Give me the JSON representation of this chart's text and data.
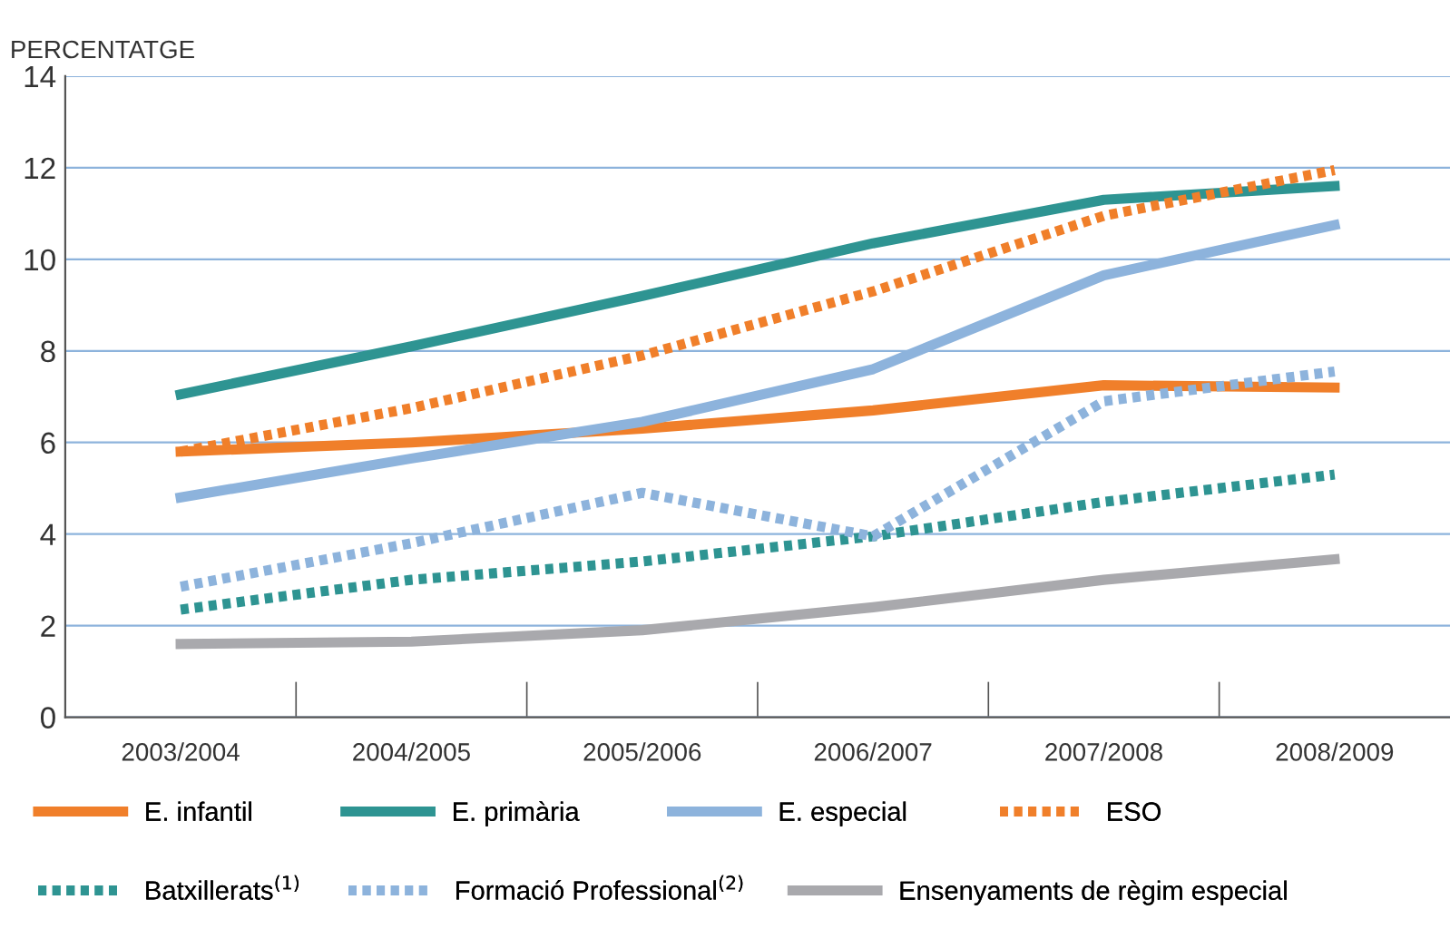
{
  "chart_data": {
    "type": "line",
    "ylabel": "PERCENTATGE",
    "categories": [
      "2003/2004",
      "2004/2005",
      "2005/2006",
      "2006/2007",
      "2007/2008",
      "2008/2009"
    ],
    "series": [
      {
        "name": "E. infantil",
        "color": "#f07f2a",
        "line_style": "solid",
        "values": [
          5.8,
          6.0,
          6.3,
          6.7,
          7.25,
          7.2
        ]
      },
      {
        "name": "E. primària",
        "color": "#2e9492",
        "line_style": "solid",
        "values": [
          7.05,
          8.1,
          9.2,
          10.35,
          11.3,
          11.6
        ]
      },
      {
        "name": "E. especial",
        "color": "#8db3dc",
        "line_style": "solid",
        "values": [
          4.8,
          5.65,
          6.45,
          7.6,
          9.65,
          10.75
        ]
      },
      {
        "name": "ESO",
        "color": "#f07f2a",
        "line_style": "dotted",
        "values": [
          5.8,
          6.75,
          7.9,
          9.3,
          10.95,
          11.95
        ]
      },
      {
        "name": "Batxillerats$^{(1)}$",
        "color": "#2e9492",
        "line_style": "dotted",
        "values": [
          2.35,
          3.0,
          3.4,
          3.95,
          4.7,
          5.3
        ]
      },
      {
        "name": "Formació Professional$^{(2)}$",
        "color": "#8db3dc",
        "line_style": "dotted",
        "values": [
          2.85,
          3.8,
          4.9,
          3.95,
          6.9,
          7.55
        ]
      },
      {
        "name": "Ensenyaments de règim especial",
        "color": "#a9a9ad",
        "line_style": "solid",
        "values": [
          1.6,
          1.65,
          1.9,
          2.4,
          3.0,
          3.45
        ]
      }
    ],
    "ylim": [
      0,
      14
    ],
    "yticks": [
      0,
      2,
      4,
      6,
      8,
      10,
      12,
      14
    ],
    "grid": "y",
    "legend": "bottom",
    "marker": "none"
  }
}
